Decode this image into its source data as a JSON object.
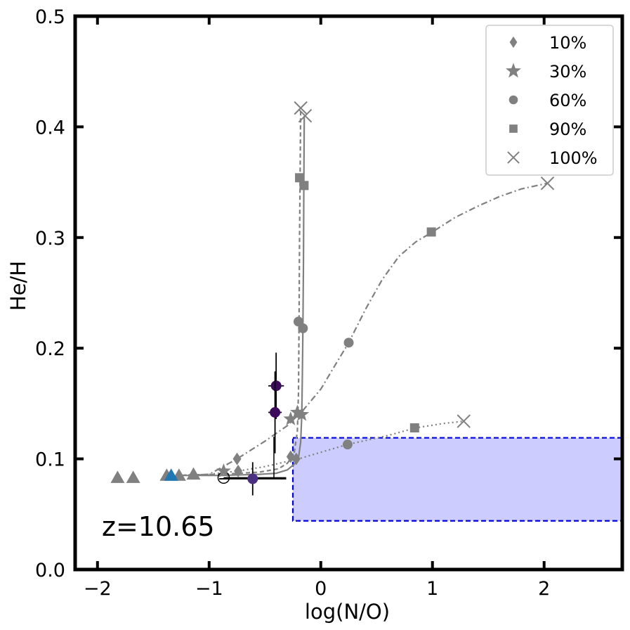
{
  "chart_data": {
    "type": "scatter",
    "xlabel": "log(N/O)",
    "ylabel": "He/H",
    "xlim": [
      -2.2,
      2.7
    ],
    "ylim": [
      0.0,
      0.5
    ],
    "xticks": [
      -2,
      -1,
      0,
      1,
      2
    ],
    "xtick_labels": [
      "−2",
      "−1",
      "0",
      "1",
      "2"
    ],
    "yticks": [
      0.0,
      0.1,
      0.2,
      0.3,
      0.4,
      0.5
    ],
    "ytick_labels": [
      "0.0",
      "0.1",
      "0.2",
      "0.3",
      "0.4",
      "0.5"
    ],
    "annotation": "z=10.65",
    "legend": {
      "location": "top-right",
      "entries": [
        {
          "label": "10%",
          "marker": "diamond"
        },
        {
          "label": "30%",
          "marker": "star"
        },
        {
          "label": "60%",
          "marker": "circle"
        },
        {
          "label": "90%",
          "marker": "square"
        },
        {
          "label": "100%",
          "marker": "x"
        }
      ]
    },
    "colors": {
      "model": "#808080",
      "observed_dark": "#3d0a5c",
      "observed_mid": "#4b2f80",
      "highlight": "#1f77b4",
      "region_fill": "#ccccff",
      "region_edge": "#0000dd"
    },
    "region": {
      "x": [
        -0.25,
        2.7
      ],
      "y": [
        0.044,
        0.119
      ]
    },
    "base_triangles": [
      {
        "x": -1.82,
        "y": 0.083
      },
      {
        "x": -1.68,
        "y": 0.083
      },
      {
        "x": -1.38,
        "y": 0.085
      },
      {
        "x": -1.27,
        "y": 0.085
      },
      {
        "x": -1.14,
        "y": 0.086
      }
    ],
    "highlight_triangle": {
      "x": -1.34,
      "y": 0.085
    },
    "tracks": [
      {
        "name": "dashed",
        "dash": "6,4",
        "curve": [
          [
            -1.3,
            0.085
          ],
          [
            -0.9,
            0.086
          ],
          [
            -0.55,
            0.088
          ],
          [
            -0.38,
            0.091
          ],
          [
            -0.3,
            0.096
          ],
          [
            -0.24,
            0.104
          ],
          [
            -0.21,
            0.125
          ],
          [
            -0.2,
            0.16
          ],
          [
            -0.195,
            0.224
          ],
          [
            -0.19,
            0.3
          ],
          [
            -0.185,
            0.355
          ],
          [
            -0.18,
            0.417
          ]
        ],
        "points": [
          {
            "marker": "diamond",
            "x": -0.27,
            "y": 0.102
          },
          {
            "marker": "star",
            "x": -0.21,
            "y": 0.142
          },
          {
            "marker": "circle",
            "x": -0.2,
            "y": 0.224
          },
          {
            "marker": "square",
            "x": -0.19,
            "y": 0.354
          },
          {
            "marker": "x",
            "x": -0.18,
            "y": 0.417
          }
        ]
      },
      {
        "name": "solid",
        "dash": "",
        "curve": [
          [
            -1.3,
            0.085
          ],
          [
            -0.9,
            0.085
          ],
          [
            -0.55,
            0.086
          ],
          [
            -0.4,
            0.087
          ],
          [
            -0.3,
            0.09
          ],
          [
            -0.24,
            0.095
          ],
          [
            -0.2,
            0.101
          ],
          [
            -0.18,
            0.115
          ],
          [
            -0.17,
            0.14
          ],
          [
            -0.165,
            0.175
          ],
          [
            -0.16,
            0.218
          ],
          [
            -0.155,
            0.28
          ],
          [
            -0.152,
            0.347
          ],
          [
            -0.148,
            0.41
          ]
        ],
        "points": [
          {
            "marker": "diamond",
            "x": -0.22,
            "y": 0.1
          },
          {
            "marker": "star",
            "x": -0.17,
            "y": 0.14
          },
          {
            "marker": "circle",
            "x": -0.16,
            "y": 0.218
          },
          {
            "marker": "square",
            "x": -0.15,
            "y": 0.347
          },
          {
            "marker": "x",
            "x": -0.14,
            "y": 0.41
          }
        ]
      },
      {
        "name": "dashdot",
        "dash": "9,4,2,4",
        "curve": [
          [
            -1.3,
            0.085
          ],
          [
            -1.0,
            0.086
          ],
          [
            -0.75,
            0.1
          ],
          [
            -0.5,
            0.116
          ],
          [
            -0.3,
            0.13
          ],
          [
            -0.15,
            0.145
          ],
          [
            0.0,
            0.163
          ],
          [
            0.1,
            0.18
          ],
          [
            0.25,
            0.205
          ],
          [
            0.4,
            0.235
          ],
          [
            0.55,
            0.262
          ],
          [
            0.7,
            0.283
          ],
          [
            0.85,
            0.296
          ],
          [
            1.0,
            0.305
          ],
          [
            1.2,
            0.318
          ],
          [
            1.4,
            0.328
          ],
          [
            1.6,
            0.337
          ],
          [
            1.8,
            0.344
          ],
          [
            2.03,
            0.349
          ]
        ],
        "points": [
          {
            "marker": "diamond",
            "x": -0.75,
            "y": 0.1
          },
          {
            "marker": "star",
            "x": -0.27,
            "y": 0.136
          },
          {
            "marker": "circle",
            "x": 0.25,
            "y": 0.205
          },
          {
            "marker": "square",
            "x": 0.99,
            "y": 0.305
          },
          {
            "marker": "x",
            "x": 2.03,
            "y": 0.349
          }
        ]
      },
      {
        "name": "dotted",
        "dash": "2,4",
        "curve": [
          [
            -1.3,
            0.085
          ],
          [
            -1.0,
            0.086
          ],
          [
            -0.74,
            0.089
          ],
          [
            -0.5,
            0.093
          ],
          [
            -0.2,
            0.1
          ],
          [
            0.24,
            0.113
          ],
          [
            0.6,
            0.121
          ],
          [
            0.85,
            0.128
          ],
          [
            1.1,
            0.132
          ],
          [
            1.28,
            0.134
          ]
        ],
        "points": [
          {
            "marker": "diamond",
            "x": -0.74,
            "y": 0.089
          },
          {
            "marker": "star",
            "x": -0.87,
            "y": 0.089
          },
          {
            "marker": "circle",
            "x": 0.24,
            "y": 0.113
          },
          {
            "marker": "square",
            "x": 0.84,
            "y": 0.128
          },
          {
            "marker": "x",
            "x": 1.28,
            "y": 0.134
          }
        ]
      }
    ],
    "observations": [
      {
        "x": -0.4,
        "y": 0.166,
        "xerr": 0.07,
        "yerr": 0.03,
        "color": "#3d0a5c"
      },
      {
        "x": -0.41,
        "y": 0.142,
        "xerr": 0.06,
        "yerr": 0.037,
        "color": "#3d0a5c"
      },
      {
        "x": -0.61,
        "y": 0.082,
        "xerr": 0.3,
        "yerr": 0.015,
        "color": "#4b2f80"
      }
    ],
    "open_circle": {
      "x": -0.87,
      "y": 0.083
    },
    "cross_lines": [
      {
        "x1": -0.87,
        "y1": 0.083,
        "x2": -0.31,
        "y2": 0.083
      },
      {
        "x1": -0.42,
        "y1": 0.083,
        "x2": -0.42,
        "y2": 0.12
      }
    ]
  }
}
